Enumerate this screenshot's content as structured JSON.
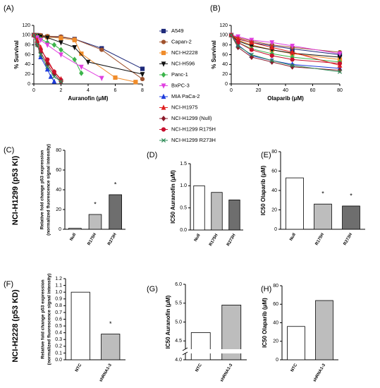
{
  "row_labels": [
    "NCI-H1299 (p53 KI)",
    "NCI-H2228 (p53 KD)"
  ],
  "chart_data": [
    {
      "type": "line",
      "panel": "(A)",
      "xlabel": "Auranofin (μM)",
      "ylabel": "% Survival",
      "legend": true,
      "xlim": [
        0,
        8
      ],
      "xticks": [
        0,
        2,
        4,
        6,
        8
      ],
      "ylim": [
        0,
        120
      ],
      "yticks": [
        0,
        20,
        40,
        60,
        80,
        100,
        120
      ],
      "series": [
        {
          "name": "A549",
          "color": "#1f2a7a",
          "marker": "square",
          "x": [
            0,
            0.25,
            0.5,
            1,
            2,
            3,
            5,
            8
          ],
          "values": [
            100,
            100,
            99,
            97,
            96,
            92,
            73,
            31
          ]
        },
        {
          "name": "Capan-2",
          "color": "#a0522d",
          "marker": "circle",
          "x": [
            0,
            0.25,
            0.5,
            1,
            2,
            3,
            5,
            8
          ],
          "values": [
            100,
            100,
            100,
            98,
            97,
            92,
            70,
            10
          ]
        },
        {
          "name": "NCI-H2228",
          "color": "#f08c2a",
          "marker": "square",
          "x": [
            0,
            0.5,
            1,
            2,
            3,
            3.5,
            6,
            7.5
          ],
          "values": [
            100,
            98,
            96,
            94,
            90,
            62,
            13,
            4
          ]
        },
        {
          "name": "NCI-H596",
          "color": "#111111",
          "marker": "tridown",
          "x": [
            0,
            0.25,
            0.5,
            1,
            2,
            3,
            4,
            8
          ],
          "values": [
            100,
            98,
            97,
            95,
            85,
            75,
            45,
            20
          ]
        },
        {
          "name": "Panc-1",
          "color": "#3cb44b",
          "marker": "diamond",
          "x": [
            0,
            0.25,
            0.5,
            1,
            1.5,
            2,
            3,
            3.5
          ],
          "values": [
            100,
            97,
            92,
            85,
            80,
            70,
            50,
            22
          ]
        },
        {
          "name": "BxPC-3",
          "color": "#e040e0",
          "marker": "tridown",
          "x": [
            0,
            0.25,
            0.5,
            1,
            2,
            3.5,
            5
          ],
          "values": [
            98,
            95,
            90,
            80,
            60,
            35,
            12
          ]
        },
        {
          "name": "MIA PaCa-2",
          "color": "#1e3cdc",
          "marker": "triup",
          "x": [
            0,
            0.25,
            0.5,
            1,
            1.25,
            1.5
          ],
          "values": [
            100,
            85,
            55,
            30,
            15,
            5
          ]
        },
        {
          "name": "NCI-H1975",
          "color": "#e02020",
          "marker": "triup",
          "x": [
            0,
            0.25,
            0.5,
            1,
            1.5,
            2
          ],
          "values": [
            100,
            90,
            75,
            45,
            25,
            10
          ]
        },
        {
          "name": "NCI-H1299 (Null)",
          "color": "#8b1a2a",
          "marker": "diamond",
          "x": [
            0,
            0.25,
            0.5,
            1,
            1.5,
            2
          ],
          "values": [
            100,
            80,
            65,
            40,
            20,
            5
          ]
        },
        {
          "name": "NCI-H1299 R175H",
          "color": "#c8102e",
          "marker": "circle",
          "x": [
            0,
            0.25,
            0.5,
            1,
            1.5,
            2
          ],
          "values": [
            100,
            85,
            70,
            50,
            25,
            8
          ]
        },
        {
          "name": "NCI-H1299 R273H",
          "color": "#2e8b57",
          "marker": "cross",
          "x": [
            0,
            0.25,
            0.5,
            1,
            1.5,
            2
          ],
          "values": [
            100,
            80,
            60,
            35,
            15,
            5
          ]
        }
      ]
    },
    {
      "type": "line",
      "panel": "(B)",
      "xlabel": "Olaparib (μM)",
      "ylabel": "% Survival",
      "xlim": [
        0,
        80
      ],
      "xticks": [
        0,
        20,
        40,
        60,
        80
      ],
      "ylim": [
        0,
        120
      ],
      "yticks": [
        0,
        20,
        40,
        60,
        80,
        100,
        120
      ],
      "series": [
        {
          "color": "#1f2a7a",
          "marker": "square",
          "x": [
            0,
            5,
            15,
            30,
            45,
            80
          ],
          "values": [
            100,
            92,
            85,
            78,
            72,
            60
          ]
        },
        {
          "color": "#a0522d",
          "marker": "circle",
          "x": [
            0,
            5,
            15,
            30,
            45,
            80
          ],
          "values": [
            100,
            95,
            88,
            80,
            75,
            65
          ]
        },
        {
          "color": "#f08c2a",
          "marker": "square",
          "x": [
            0,
            5,
            15,
            30,
            45,
            80
          ],
          "values": [
            100,
            90,
            80,
            70,
            62,
            50
          ]
        },
        {
          "color": "#111111",
          "marker": "tridown",
          "x": [
            0,
            5,
            15,
            30,
            45,
            80
          ],
          "values": [
            100,
            88,
            78,
            70,
            63,
            55
          ]
        },
        {
          "color": "#3cb44b",
          "marker": "diamond",
          "x": [
            0,
            5,
            15,
            30,
            45,
            80
          ],
          "values": [
            100,
            85,
            72,
            62,
            55,
            45
          ]
        },
        {
          "color": "#e040e0",
          "marker": "tridown",
          "x": [
            0,
            5,
            15,
            30,
            45,
            80
          ],
          "values": [
            100,
            97,
            90,
            85,
            78,
            62
          ]
        },
        {
          "color": "#1e3cdc",
          "marker": "triup",
          "x": [
            0,
            5,
            15,
            30,
            45,
            80
          ],
          "values": [
            100,
            80,
            58,
            48,
            40,
            32
          ]
        },
        {
          "color": "#e02020",
          "marker": "triup",
          "x": [
            0,
            5,
            15,
            30,
            45,
            80
          ],
          "values": [
            100,
            93,
            85,
            75,
            65,
            38
          ]
        },
        {
          "color": "#8b1a2a",
          "marker": "diamond",
          "x": [
            0,
            5,
            15,
            30,
            45,
            80
          ],
          "values": [
            100,
            75,
            55,
            45,
            35,
            28
          ]
        },
        {
          "color": "#c8102e",
          "marker": "circle",
          "x": [
            0,
            5,
            15,
            30,
            45,
            80
          ],
          "values": [
            100,
            85,
            70,
            58,
            50,
            42
          ]
        },
        {
          "color": "#2e8b57",
          "marker": "cross",
          "x": [
            0,
            5,
            15,
            30,
            45,
            80
          ],
          "values": [
            100,
            78,
            60,
            48,
            38,
            25
          ]
        }
      ]
    },
    {
      "type": "bar",
      "panel": "(C)",
      "ylabel": [
        "Relative fold change p53 expression",
        "(normalized fluorescence signal intensity)"
      ],
      "categories": [
        "Null",
        "R175H",
        "R273H"
      ],
      "values": [
        1,
        15,
        35
      ],
      "colors": [
        "#ffffff",
        "#bdbdbd",
        "#6e6e6e"
      ],
      "annotations": [
        null,
        "*",
        "*"
      ],
      "ylim": [
        0,
        80
      ],
      "yticks": [
        0,
        20,
        40,
        60,
        80
      ]
    },
    {
      "type": "bar",
      "panel": "(D)",
      "ylabel": "IC50 Auranofin (μM)",
      "categories": [
        "Null",
        "R175H",
        "R273H"
      ],
      "values": [
        1.0,
        0.85,
        0.68
      ],
      "colors": [
        "#ffffff",
        "#bdbdbd",
        "#6e6e6e"
      ],
      "ylim": [
        0,
        1.5
      ],
      "yticks": [
        {
          "value": 0,
          "label": "0.0"
        },
        0.5,
        {
          "value": 1,
          "label": "1.0"
        },
        1.5
      ]
    },
    {
      "type": "bar",
      "panel": "(E)",
      "ylabel": "IC50 Olaparib (μM)",
      "categories": [
        "Null",
        "R175H",
        "R273H"
      ],
      "values": [
        53,
        26,
        24
      ],
      "colors": [
        "#ffffff",
        "#bdbdbd",
        "#6e6e6e"
      ],
      "annotations": [
        null,
        "*",
        "*"
      ],
      "ylim": [
        0,
        80
      ],
      "yticks": [
        0,
        20,
        40,
        60,
        80
      ]
    },
    {
      "type": "bar",
      "panel": "(F)",
      "ylabel": [
        "Relative fold change p53 expression",
        "(normalized fluorescence signal intensity)"
      ],
      "categories": [
        "NTC",
        "shRNA1-3"
      ],
      "values": [
        1.0,
        0.38
      ],
      "colors": [
        "#ffffff",
        "#bdbdbd"
      ],
      "annotations": [
        null,
        "*"
      ],
      "ylim": [
        0,
        1.2
      ],
      "yticks": [
        {
          "value": 0,
          "label": "0.0"
        },
        0.1,
        0.2,
        0.3,
        0.4,
        0.5,
        0.6,
        0.7,
        0.8,
        0.9,
        {
          "value": 1,
          "label": "1.0"
        },
        1.1,
        1.2
      ]
    },
    {
      "type": "bar",
      "panel": "(G)",
      "ylabel": "IC50 Auranofin (μM)",
      "axis_break": true,
      "categories": [
        "NTC",
        "shRNA1-3"
      ],
      "values": [
        4.72,
        5.45
      ],
      "colors": [
        "#ffffff",
        "#bdbdbd"
      ],
      "ylim": [
        4,
        6
      ],
      "yticks": [
        {
          "value": 4,
          "label": "4.0"
        },
        4.5,
        {
          "value": 5,
          "label": "5.0"
        },
        5.5,
        {
          "value": 6,
          "label": "6.0"
        }
      ]
    },
    {
      "type": "bar",
      "panel": "(H)",
      "ylabel": "IC50 Olaparib (μM)",
      "categories": [
        "NTC",
        "shRNA1-3"
      ],
      "values": [
        36,
        64
      ],
      "colors": [
        "#ffffff",
        "#bdbdbd"
      ],
      "ylim": [
        0,
        80
      ],
      "yticks": [
        0,
        20,
        40,
        60,
        80
      ]
    }
  ]
}
